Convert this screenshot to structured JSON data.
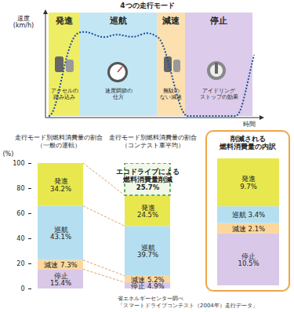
{
  "diagram": {
    "title": "4つの走行モード",
    "y_label": "速度\n(km/h)",
    "x_label": "時間",
    "modes": [
      {
        "name": "発進",
        "color": "#eeed66",
        "note": "アクセルの\n踏み込み"
      },
      {
        "name": "巡航",
        "color": "#c3e6f4",
        "note": "速度調節の\n仕方"
      },
      {
        "name": "減速",
        "color": "#fde0b0",
        "note": "無駄の\nない減速"
      },
      {
        "name": "停止",
        "color": "#dccbea",
        "note": "アイドリング\nストップの効果"
      }
    ]
  },
  "chart_data": [
    {
      "type": "bar",
      "title": "走行モード別燃料消費量の割合\n（一般の運転）",
      "stacked": true,
      "data_labels": true,
      "tick_labels": "y",
      "categories": [
        null
      ],
      "ylabel": "(%)",
      "ylim": [
        0,
        100
      ],
      "yticks": [
        0,
        20,
        40,
        60,
        80,
        100
      ],
      "series": [
        {
          "name": "停止",
          "color": "#d9c8e8",
          "values": [
            15.4
          ],
          "value_labels": [
            "15.4%"
          ]
        },
        {
          "name": "減速",
          "color": "#fbd79c",
          "values": [
            7.3
          ],
          "value_labels": [
            "7.3%"
          ]
        },
        {
          "name": "巡航",
          "color": "#b5dff0",
          "values": [
            43.1
          ],
          "value_labels": [
            "43.1%"
          ]
        },
        {
          "name": "発進",
          "color": "#e8e84e",
          "values": [
            34.2
          ],
          "value_labels": [
            "34.2%"
          ]
        }
      ]
    },
    {
      "type": "bar",
      "title": "走行モード別燃料消費量の割合\n（コンテスト車平均）",
      "stacked": true,
      "data_labels": true,
      "tick_labels": false,
      "categories": [
        null
      ],
      "ylim": [
        0,
        100
      ],
      "series": [
        {
          "name": "停止",
          "color": "#d9c8e8",
          "values": [
            4.9
          ],
          "value_labels": [
            "4.9%"
          ]
        },
        {
          "name": "減速",
          "color": "#fbd79c",
          "values": [
            5.2
          ],
          "value_labels": [
            "5.2%"
          ]
        },
        {
          "name": "巡航",
          "color": "#b5dff0",
          "values": [
            39.7
          ],
          "value_labels": [
            "39.7%"
          ]
        },
        {
          "name": "発進",
          "color": "#e8e84e",
          "values": [
            24.5
          ],
          "value_labels": [
            "24.5%"
          ]
        },
        {
          "name": "エコドライブによる\n燃料消費量削減",
          "color": "#f1f8e8",
          "line_style": "dashed",
          "values": [
            25.7
          ],
          "value_labels": [
            "25.7%"
          ]
        }
      ]
    },
    {
      "type": "bar",
      "title": "削減される\n燃料消費量の内訳",
      "stacked": true,
      "data_labels": true,
      "tick_labels": false,
      "categories": [
        null
      ],
      "ylim": [
        0,
        25.7
      ],
      "series": [
        {
          "name": "停止",
          "color": "#d9c8e8",
          "values": [
            10.5
          ],
          "value_labels": [
            "10.5%"
          ]
        },
        {
          "name": "減速",
          "color": "#fbd79c",
          "values": [
            2.1
          ],
          "value_labels": [
            "2.1%"
          ]
        },
        {
          "name": "巡航",
          "color": "#b5dff0",
          "values": [
            3.4
          ],
          "value_labels": [
            "3.4%"
          ]
        },
        {
          "name": "発進",
          "color": "#e8e84e",
          "values": [
            9.7
          ],
          "value_labels": [
            "9.7%"
          ]
        }
      ]
    }
  ],
  "source": "省エネルギーセンター調べ\n「スマートドライブコンテスト（2004年）走行データ」"
}
